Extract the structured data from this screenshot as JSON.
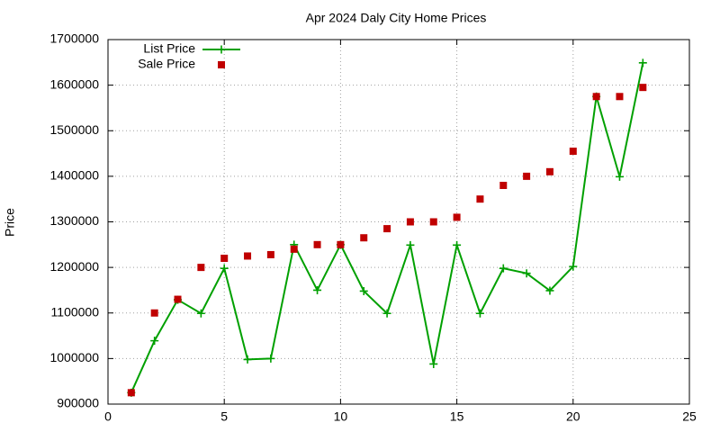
{
  "chart_data": {
    "type": "line",
    "title": "Apr 2024 Daly City Home Prices",
    "y_label": "Price",
    "x": [
      1,
      2,
      3,
      4,
      5,
      6,
      7,
      8,
      9,
      10,
      11,
      12,
      13,
      14,
      15,
      16,
      17,
      18,
      19,
      20,
      21,
      22,
      23
    ],
    "series": [
      {
        "name": "List Price",
        "color": "#00a000",
        "style": "linespoints",
        "marker": "plus",
        "values": [
          925000,
          1039000,
          1129000,
          1099000,
          1198000,
          998000,
          1000000,
          1250000,
          1150000,
          1250000,
          1148000,
          1099000,
          1249000,
          988000,
          1249000,
          1099000,
          1198000,
          1187000,
          1149000,
          1202000,
          1575000,
          1399000,
          1649000
        ]
      },
      {
        "name": "Sale Price",
        "color": "#c00000",
        "style": "points",
        "marker": "square",
        "values": [
          925000,
          1100000,
          1130000,
          1200000,
          1220000,
          1225000,
          1228000,
          1240000,
          1250000,
          1250000,
          1265000,
          1285000,
          1300000,
          1300000,
          1310000,
          1350000,
          1380000,
          1400000,
          1410000,
          1455000,
          1575000,
          1575000,
          1595000
        ]
      }
    ],
    "xlim": [
      0,
      25
    ],
    "xticks": [
      0,
      5,
      10,
      15,
      20,
      25
    ],
    "ylim": [
      900000,
      1700000
    ],
    "yticks": [
      900000,
      1000000,
      1100000,
      1200000,
      1300000,
      1400000,
      1500000,
      1600000,
      1700000
    ],
    "grid": true,
    "legend": "top-left"
  }
}
